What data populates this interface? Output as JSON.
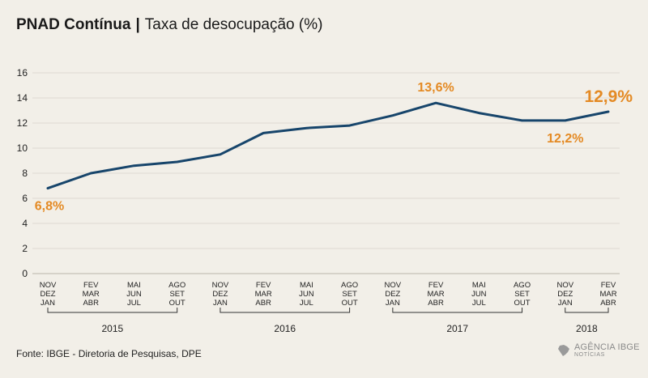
{
  "title": {
    "main": "PNAD Contínua",
    "separator": "|",
    "subtitle": "Taxa de desocupação (%)"
  },
  "source": "Fonte: IBGE - Diretoria de Pesquisas, DPE",
  "logo": {
    "main": "AGÊNCIA IBGE",
    "sub": "NOTÍCIAS"
  },
  "colors": {
    "line": "#17456b",
    "highlight": "#e48a24",
    "grid": "#dedad2",
    "axis": "#222222",
    "background": "#f2efe8"
  },
  "chart_data": {
    "type": "line",
    "title": "PNAD Contínua | Taxa de desocupação (%)",
    "xlabel": "",
    "ylabel": "",
    "ylim": [
      0,
      16
    ],
    "yticks": [
      0,
      2,
      4,
      6,
      8,
      10,
      12,
      14,
      16
    ],
    "grid": true,
    "categories": [
      [
        "NOV",
        "DEZ",
        "JAN"
      ],
      [
        "FEV",
        "MAR",
        "ABR"
      ],
      [
        "MAI",
        "JUN",
        "JUL"
      ],
      [
        "AGO",
        "SET",
        "OUT"
      ],
      [
        "NOV",
        "DEZ",
        "JAN"
      ],
      [
        "FEV",
        "MAR",
        "ABR"
      ],
      [
        "MAI",
        "JUN",
        "JUL"
      ],
      [
        "AGO",
        "SET",
        "OUT"
      ],
      [
        "NOV",
        "DEZ",
        "JAN"
      ],
      [
        "FEV",
        "MAR",
        "ABR"
      ],
      [
        "MAI",
        "JUN",
        "JUL"
      ],
      [
        "AGO",
        "SET",
        "OUT"
      ],
      [
        "NOV",
        "DEZ",
        "JAN"
      ],
      [
        "FEV",
        "MAR",
        "ABR"
      ]
    ],
    "series": [
      {
        "name": "Taxa de desocupação (%)",
        "values": [
          6.8,
          8.0,
          8.6,
          8.9,
          9.5,
          11.2,
          11.6,
          11.8,
          12.6,
          13.6,
          12.8,
          12.2,
          12.2,
          12.9
        ]
      }
    ],
    "year_groups": [
      {
        "label": "2015",
        "start": 0,
        "end": 3
      },
      {
        "label": "2016",
        "start": 4,
        "end": 7
      },
      {
        "label": "2017",
        "start": 8,
        "end": 11
      },
      {
        "label": "2018",
        "start": 12,
        "end": 13
      }
    ],
    "annotations": [
      {
        "index": 0,
        "text": "6,8%",
        "placement": "below",
        "size": "normal"
      },
      {
        "index": 9,
        "text": "13,6%",
        "placement": "above",
        "size": "normal"
      },
      {
        "index": 12,
        "text": "12,2%",
        "placement": "below",
        "size": "normal"
      },
      {
        "index": 13,
        "text": "12,9%",
        "placement": "above",
        "size": "large"
      }
    ]
  }
}
